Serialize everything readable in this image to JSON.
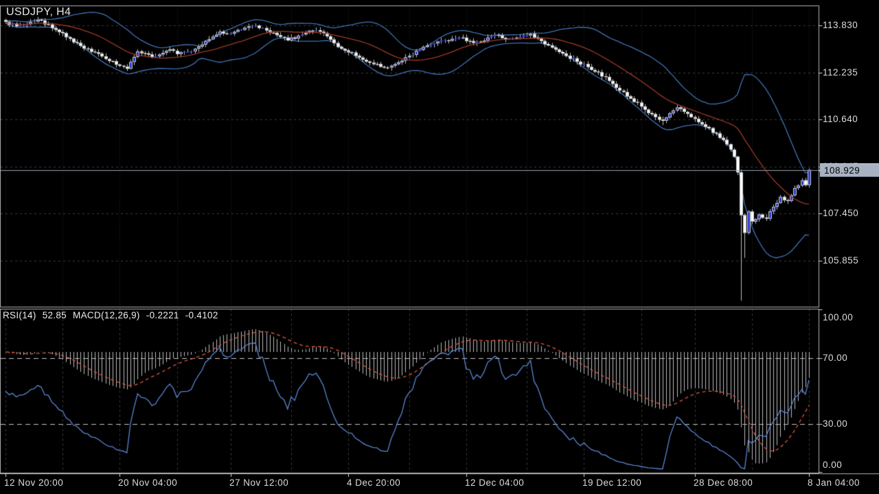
{
  "chart_data": {
    "type": "candlestick",
    "title": "USDJPY, H4",
    "symbol": "USDJPY",
    "timeframe": "H4",
    "bar_count": 226,
    "price_axis": {
      "ticks": [
        {
          "label": "113.830",
          "value": 113.83
        },
        {
          "label": "112.235",
          "value": 112.235
        },
        {
          "label": "110.640",
          "value": 110.64
        },
        {
          "label": "109.045",
          "value": 109.045
        },
        {
          "label": "107.450",
          "value": 107.45
        },
        {
          "label": "105.855",
          "value": 105.855
        }
      ],
      "current_price": 108.929,
      "current_price_label": "108.929",
      "visible_range": [
        104.3,
        114.5
      ]
    },
    "time_axis": {
      "ticks": [
        {
          "label": "12 Nov 20:00",
          "bar": 0
        },
        {
          "label": "20 Nov 04:00",
          "bar": 32
        },
        {
          "label": "27 Nov 12:00",
          "bar": 63
        },
        {
          "label": "4 Dec 20:00",
          "bar": 96
        },
        {
          "label": "12 Dec 04:00",
          "bar": 129
        },
        {
          "label": "19 Dec 12:00",
          "bar": 162
        },
        {
          "label": "28 Dec 08:00",
          "bar": 193
        },
        {
          "label": "8 Jan 04:00",
          "bar": 225
        }
      ]
    },
    "price_path_anchors": [
      [
        0,
        113.95
      ],
      [
        3,
        113.8
      ],
      [
        6,
        113.88
      ],
      [
        9,
        114.02
      ],
      [
        12,
        113.86
      ],
      [
        15,
        113.6
      ],
      [
        18,
        113.38
      ],
      [
        22,
        113.05
      ],
      [
        25,
        112.92
      ],
      [
        27,
        112.78
      ],
      [
        31,
        112.5
      ],
      [
        34,
        112.36
      ],
      [
        37,
        112.95
      ],
      [
        39,
        112.88
      ],
      [
        41,
        112.76
      ],
      [
        44,
        112.9
      ],
      [
        46,
        113.02
      ],
      [
        48,
        112.86
      ],
      [
        52,
        112.95
      ],
      [
        55,
        113.18
      ],
      [
        58,
        113.45
      ],
      [
        60,
        113.62
      ],
      [
        63,
        113.55
      ],
      [
        66,
        113.68
      ],
      [
        70,
        113.82
      ],
      [
        73,
        113.66
      ],
      [
        76,
        113.5
      ],
      [
        79,
        113.32
      ],
      [
        82,
        113.48
      ],
      [
        85,
        113.65
      ],
      [
        88,
        113.62
      ],
      [
        91,
        113.35
      ],
      [
        93,
        113.1
      ],
      [
        96,
        112.92
      ],
      [
        99,
        112.74
      ],
      [
        103,
        112.52
      ],
      [
        107,
        112.4
      ],
      [
        110,
        112.58
      ],
      [
        113,
        112.8
      ],
      [
        117,
        113.1
      ],
      [
        120,
        113.22
      ],
      [
        123,
        113.32
      ],
      [
        127,
        113.42
      ],
      [
        130,
        113.3
      ],
      [
        133,
        113.26
      ],
      [
        137,
        113.5
      ],
      [
        140,
        113.36
      ],
      [
        144,
        113.44
      ],
      [
        147,
        113.54
      ],
      [
        150,
        113.3
      ],
      [
        153,
        113.08
      ],
      [
        156,
        112.88
      ],
      [
        160,
        112.6
      ],
      [
        163,
        112.42
      ],
      [
        166,
        112.24
      ],
      [
        169,
        111.95
      ],
      [
        172,
        111.62
      ],
      [
        175,
        111.35
      ],
      [
        178,
        111.08
      ],
      [
        181,
        110.82
      ],
      [
        184,
        110.6
      ],
      [
        186,
        110.85
      ],
      [
        188,
        111.05
      ],
      [
        190,
        110.9
      ],
      [
        192,
        110.72
      ],
      [
        194,
        110.55
      ],
      [
        197,
        110.35
      ],
      [
        200,
        110.02
      ],
      [
        202,
        109.8
      ],
      [
        203,
        109.62
      ],
      [
        204,
        109.38
      ],
      [
        205,
        108.85
      ],
      [
        206,
        107.4
      ],
      [
        207,
        106.8
      ],
      [
        208,
        107.52
      ],
      [
        209,
        107.18
      ],
      [
        211,
        107.42
      ],
      [
        213,
        107.28
      ],
      [
        215,
        107.68
      ],
      [
        217,
        108.02
      ],
      [
        219,
        107.88
      ],
      [
        221,
        108.32
      ],
      [
        223,
        108.58
      ],
      [
        224,
        108.42
      ],
      [
        225,
        108.93
      ]
    ],
    "wick_overrides": [
      [
        9,
        "high",
        114.12
      ],
      [
        184,
        "low",
        110.45
      ],
      [
        206,
        "low",
        104.5
      ],
      [
        207,
        "low",
        105.95
      ]
    ],
    "indicators": {
      "bollinger": {
        "period": 20,
        "deviation": 2
      },
      "rsi": {
        "period": 14,
        "value_label": "52.85"
      },
      "macd": {
        "fast": 12,
        "slow": 26,
        "signal": 9,
        "main_value_label": "-0.2221",
        "signal_value_label": "-0.4102",
        "zero_level_display": 73.75
      }
    },
    "indicator_panel": {
      "label": "RSI(14) 52.85 MACD(12,26,9) -0.2221 -0.4102",
      "rsi_label": "RSI(14)",
      "rsi_value": "52.85",
      "macd_label": "MACD(12,26,9)",
      "macd_value": "-0.2221",
      "macd_signal_value": "-0.4102",
      "axis_ticks": [
        {
          "label": "100.00",
          "value": 100
        },
        {
          "label": "70.00",
          "value": 70
        },
        {
          "label": "30.00",
          "value": 30
        },
        {
          "label": "0.00",
          "value": 0
        }
      ],
      "levels": [
        70,
        30
      ]
    },
    "colors": {
      "background": "#000000",
      "frame": "#b4b4b4",
      "grid_vertical": "#333333",
      "grid_horizontal": "#3d3d3d",
      "candle_up_fill": "#2b3cd2",
      "candle_down_fill": "#ffffff",
      "candle_border": "#c8c8c8",
      "wick": "#c0c0c0",
      "bollinger_band": "#3f74b5",
      "bollinger_mid": "#a03a28",
      "current_price_line": "#98a1b0",
      "price_badge_bg": "#a9b2c2",
      "price_badge_text": "#000000",
      "rsi_line": "#5b87d6",
      "macd_signal_line": "#d8503c",
      "macd_histogram": "#bdbdbd",
      "level_line": "#c8c8c8",
      "axis_text": "#dcdcdc"
    }
  }
}
